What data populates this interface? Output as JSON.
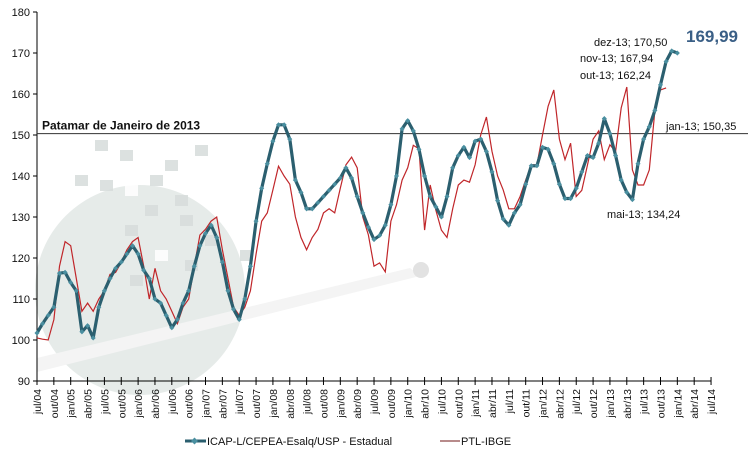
{
  "chart_data": {
    "type": "line",
    "title": "",
    "xlabel": "",
    "ylabel": "",
    "ylim": [
      90,
      180
    ],
    "yticks": [
      90,
      100,
      110,
      120,
      130,
      140,
      150,
      160,
      170,
      180
    ],
    "x_start": "jul/04",
    "x_tick_labels": [
      "jul/04",
      "out/04",
      "jan/05",
      "abr/05",
      "jul/05",
      "out/05",
      "jan/06",
      "abr/06",
      "jul/06",
      "out/06",
      "jan/07",
      "abr/07",
      "jul/07",
      "out/07",
      "jan/08",
      "abr/08",
      "jul/08",
      "out/08",
      "jan/09",
      "abr/09",
      "jul/09",
      "out/09",
      "jan/10",
      "abr/10",
      "jul/10",
      "out/10",
      "jan/11",
      "abr/11",
      "jul/11",
      "out/11",
      "jan/12",
      "abr/12",
      "jul/12",
      "out/12",
      "jan/13",
      "abr/13",
      "jul/13",
      "out/13",
      "jan/14",
      "abr/14",
      "jul/14"
    ],
    "grid": false,
    "legend_placement": "bottom",
    "series": [
      {
        "name": "ICAP-L/CEPEA-Esalq/USP - Estadual",
        "color": "#2b5f6f",
        "marker_color": "#4a8fa0",
        "values": [
          101.7,
          104,
          106,
          108,
          116.3,
          116.5,
          114,
          112,
          102,
          103.5,
          100.5,
          108,
          112,
          115,
          117.5,
          119,
          121,
          123,
          121,
          117,
          115,
          110,
          109,
          106,
          103,
          105,
          109,
          112,
          118,
          123,
          126,
          128,
          125,
          119,
          112,
          107.5,
          105,
          110,
          118,
          129,
          137,
          143,
          148.5,
          152.5,
          152.5,
          149,
          139,
          136,
          132,
          132,
          133.5,
          135,
          136.5,
          138,
          139.5,
          142,
          139.5,
          135,
          131,
          127.5,
          124.5,
          125.5,
          128,
          133,
          140,
          151.5,
          153.5,
          151,
          146.5,
          140,
          135,
          132.5,
          130,
          135,
          142,
          145,
          147,
          144.5,
          148.5,
          149,
          146,
          141,
          134,
          129.5,
          128,
          131,
          133,
          138,
          142.5,
          142.5,
          147,
          146.5,
          143,
          138,
          134.5,
          134.5,
          137,
          141,
          145,
          144.5,
          148,
          154,
          150.35,
          145,
          139,
          136,
          134.24,
          143,
          149,
          152,
          156,
          162.24,
          167.94,
          170.5,
          169.99
        ]
      },
      {
        "name": "PTL-IBGE",
        "color": "#c0262a",
        "values": [
          100.5,
          100.2,
          100,
          105,
          118,
          124,
          123,
          115,
          107,
          109,
          107,
          110,
          112,
          116,
          116.5,
          119,
          122,
          124,
          125,
          118,
          110,
          117.5,
          112,
          110,
          107,
          104,
          108,
          110,
          118,
          125.6,
          127,
          129,
          130,
          122,
          115,
          108,
          106,
          108,
          112,
          121,
          129,
          131,
          136.6,
          142.4,
          140,
          138,
          130,
          125,
          122,
          125,
          127,
          131,
          132,
          131,
          137,
          142.7,
          144.6,
          142,
          130,
          125.6,
          118,
          118.8,
          116.6,
          129,
          133,
          139,
          142,
          147.5,
          146.6,
          126.8,
          137.8,
          131.7,
          126.8,
          125,
          132,
          137.8,
          139,
          138.5,
          142.7,
          150,
          154.4,
          146,
          140,
          136.6,
          132,
          132,
          135,
          139,
          142.7,
          142.7,
          150,
          157,
          161,
          149,
          144,
          148,
          135,
          136.5,
          142.7,
          149,
          151,
          144,
          147.6,
          146,
          156.6,
          161.7,
          141.5,
          137.8,
          137.8,
          141.5,
          156,
          161,
          161.5
        ]
      }
    ],
    "reference_line": {
      "value": 150.35,
      "label": "Patamar de Janeiro de 2013"
    },
    "annotations": {
      "jan13": "jan-13; 150,35",
      "mai13": "mai-13; 134,24",
      "out13": "out-13; 162,24",
      "nov13": "nov-13; 167,94",
      "dez13": "dez-13; 170,50",
      "last_value": "169,99"
    }
  }
}
